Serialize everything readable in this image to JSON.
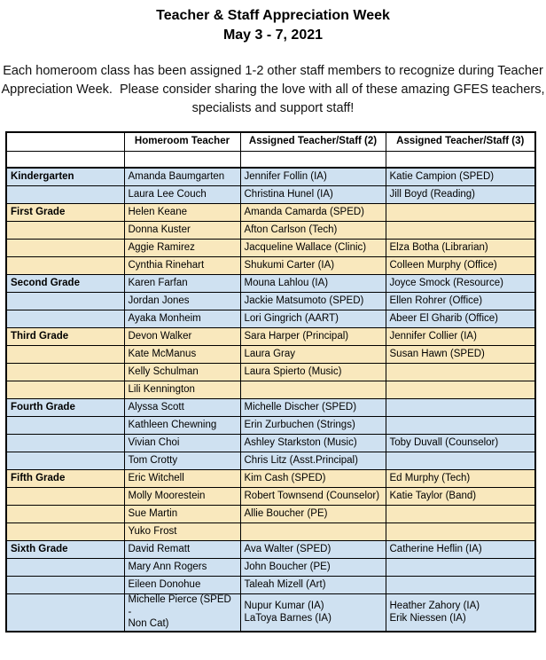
{
  "header": {
    "title": "Teacher & Staff Appreciation Week",
    "subtitle": "May 3 - 7, 2021"
  },
  "intro": {
    "lines": [
      "Each homeroom class has been assigned 1-2 other staff members to recognize during Teacher",
      "Appreciation Week.  Please consider sharing the love with all of these amazing GFES teachers,",
      "specialists and support staff!"
    ]
  },
  "colors": {
    "blue": "#CFE1F1",
    "yellow": "#F9E8BD"
  },
  "table": {
    "columns": [
      "",
      "Homeroom Teacher",
      "Assigned Teacher/Staff (2)",
      "Assigned Teacher/Staff (3)"
    ],
    "groups": [
      {
        "grade": "Kindergarten",
        "color": "blue",
        "rows": [
          [
            "Amanda Baumgarten",
            "Jennifer Follin (IA)",
            "Katie Campion (SPED)"
          ],
          [
            "Laura Lee Couch",
            "Christina Hunel (IA)",
            "Jill Boyd (Reading)"
          ]
        ]
      },
      {
        "grade": "First Grade",
        "color": "yellow",
        "rows": [
          [
            "Helen Keane",
            "Amanda Camarda (SPED)",
            ""
          ],
          [
            "Donna Kuster",
            "Afton Carlson (Tech)",
            ""
          ],
          [
            "Aggie Ramirez",
            "Jacqueline Wallace (Clinic)",
            "Elza Botha (Librarian)"
          ],
          [
            "Cynthia Rinehart",
            "Shukumi Carter (IA)",
            "Colleen Murphy (Office)"
          ]
        ]
      },
      {
        "grade": "Second Grade",
        "color": "blue",
        "rows": [
          [
            "Karen Farfan",
            "Mouna Lahlou (IA)",
            "Joyce Smock (Resource)"
          ],
          [
            "Jordan Jones",
            "Jackie Matsumoto (SPED)",
            "Ellen Rohrer (Office)"
          ],
          [
            "Ayaka Monheim",
            "Lori Gingrich (AART)",
            "Abeer El Gharib (Office)"
          ]
        ]
      },
      {
        "grade": "Third Grade",
        "color": "yellow",
        "rows": [
          [
            "Devon Walker",
            "Sara Harper (Principal)",
            "Jennifer Collier (IA)"
          ],
          [
            "Kate McManus",
            "Laura Gray",
            "Susan Hawn (SPED)"
          ],
          [
            "Kelly Schulman",
            "Laura Spierto (Music)",
            ""
          ],
          [
            "Lili Kennington",
            "",
            ""
          ]
        ]
      },
      {
        "grade": "Fourth Grade",
        "color": "blue",
        "rows": [
          [
            "Alyssa Scott",
            "Michelle Discher (SPED)",
            ""
          ],
          [
            "Kathleen Chewning",
            "Erin Zurbuchen (Strings)",
            ""
          ],
          [
            "Vivian Choi",
            "Ashley Starkston (Music)",
            "Toby Duvall (Counselor)"
          ],
          [
            "Tom Crotty",
            "Chris Litz (Asst.Principal)",
            ""
          ]
        ]
      },
      {
        "grade": "Fifth Grade",
        "color": "yellow",
        "rows": [
          [
            "Eric Witchell",
            "Kim Cash (SPED)",
            "Ed Murphy (Tech)"
          ],
          [
            "Molly Moorestein",
            "Robert Townsend (Counselor)",
            "Katie Taylor (Band)"
          ],
          [
            "Sue Martin",
            "Allie Boucher (PE)",
            ""
          ],
          [
            "Yuko Frost",
            "",
            ""
          ]
        ]
      },
      {
        "grade": "Sixth Grade",
        "color": "blue",
        "rows": [
          [
            "David Rematt",
            "Ava Walter (SPED)",
            "Catherine Heflin (IA)"
          ],
          [
            "Mary Ann Rogers",
            "John Boucher (PE)",
            ""
          ],
          [
            "Eileen Donohue",
            "Taleah Mizell (Art)",
            ""
          ],
          [
            "Michelle Pierce (SPED -\nNon Cat)",
            "Nupur Kumar (IA)\nLaToya Barnes (IA)",
            "Heather Zahory (IA)\nErik Niessen (IA)"
          ]
        ]
      }
    ]
  }
}
